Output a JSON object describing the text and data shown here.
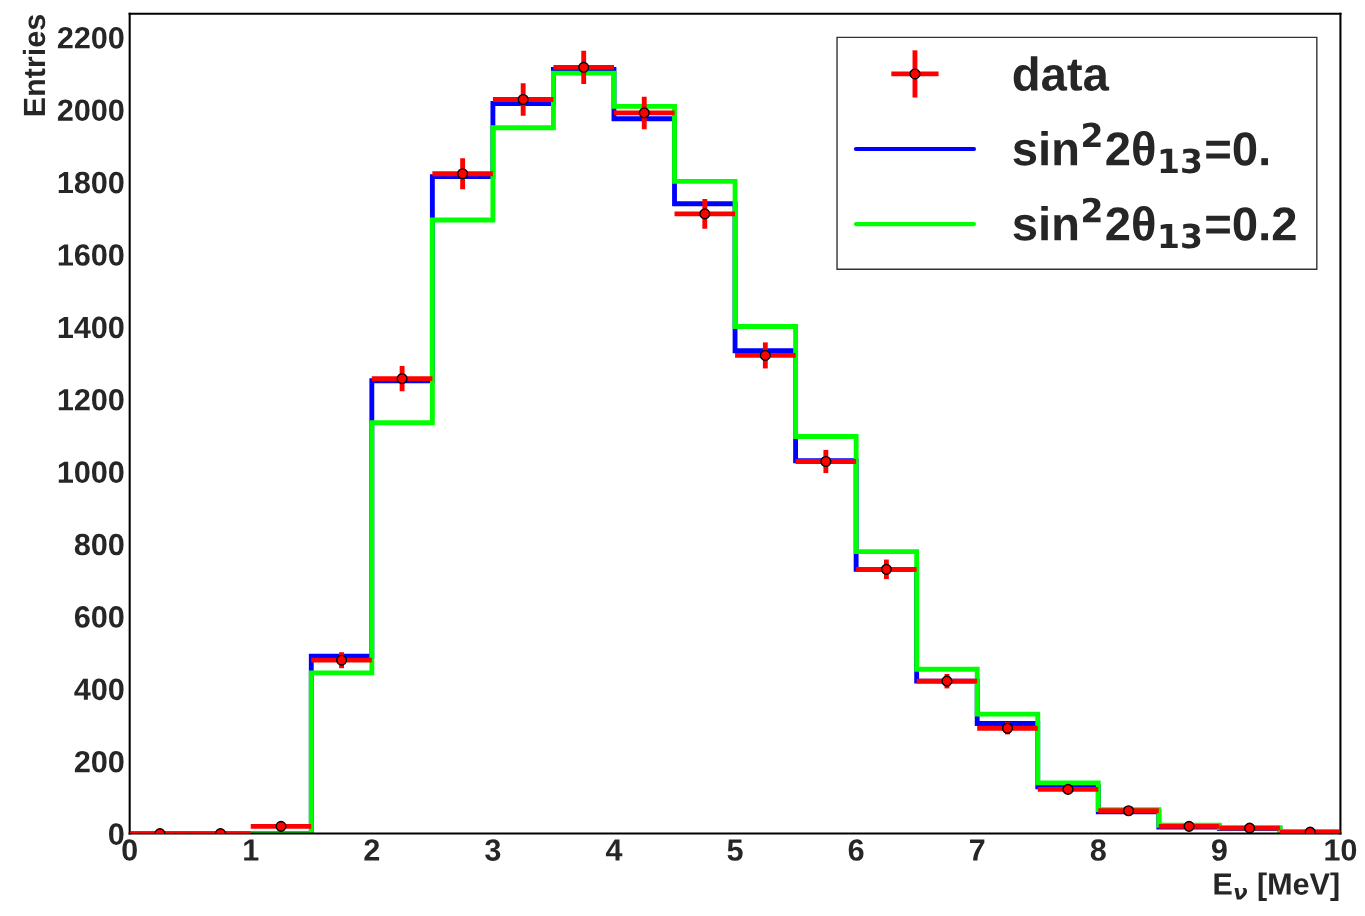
{
  "chart_data": {
    "type": "histogram",
    "xlabel": "E$_{ν}$ [MeV]",
    "ylabel": "Entries",
    "bins": [
      0,
      0.5,
      1,
      1.5,
      2,
      2.5,
      3,
      3.5,
      4,
      4.5,
      5,
      5.5,
      6,
      6.5,
      7,
      7.5,
      8,
      8.5,
      9,
      9.5,
      10
    ],
    "series": [
      {
        "name": "data",
        "type": "scatter",
        "color": "#ff0000",
        "marker": "circle",
        "x": [
          0.25,
          0.75,
          1.25,
          1.75,
          2.25,
          2.75,
          3.25,
          3.75,
          4.25,
          4.75,
          5.25,
          5.75,
          6.25,
          6.75,
          7.25,
          7.75,
          8.25,
          8.75,
          9.25,
          9.75
        ],
        "values": [
          0,
          0,
          20,
          479,
          1257,
          1823,
          2028,
          2117,
          1991,
          1712,
          1321,
          1028,
          730,
          421,
          291,
          122,
          63,
          20,
          15,
          4
        ],
        "errors": [
          null,
          null,
          null,
          22,
          35,
          43,
          45,
          46,
          45,
          41,
          36,
          32,
          27,
          20,
          17,
          11,
          8,
          null,
          null,
          null
        ],
        "xerrors": [
          0.25,
          0.25,
          0.25,
          0.25,
          0.25,
          0.25,
          0.25,
          0.25,
          0.25,
          0.25,
          0.25,
          0.25,
          0.25,
          0.25,
          0.25,
          0.25,
          0.25,
          0.25,
          0.25,
          0.25
        ]
      },
      {
        "name": "sin$^{2}$2θ$_{13}$=0.",
        "color": "#0000ff",
        "values": [
          0,
          0,
          0,
          490,
          1251,
          1815,
          2017,
          2111,
          1975,
          1740,
          1334,
          1030,
          730,
          421,
          304,
          129,
          60,
          18,
          14,
          4
        ]
      },
      {
        "name": "sin$^{2}$2θ$_{13}$=0.2",
        "color": "#00ff00",
        "values": [
          0,
          0,
          0,
          444,
          1135,
          1695,
          1950,
          2101,
          2009,
          1802,
          1401,
          1097,
          779,
          454,
          330,
          140,
          66,
          23,
          16,
          5
        ]
      }
    ],
    "xlim": [
      0,
      10
    ],
    "xticks": [
      0,
      1,
      2,
      3,
      4,
      5,
      6,
      7,
      8,
      9,
      10
    ],
    "ylim": [
      0,
      2265
    ],
    "yticks": [
      0,
      200,
      400,
      600,
      800,
      1000,
      1200,
      1400,
      1600,
      1800,
      2000,
      2200
    ],
    "grid": false,
    "legend": "top right"
  }
}
